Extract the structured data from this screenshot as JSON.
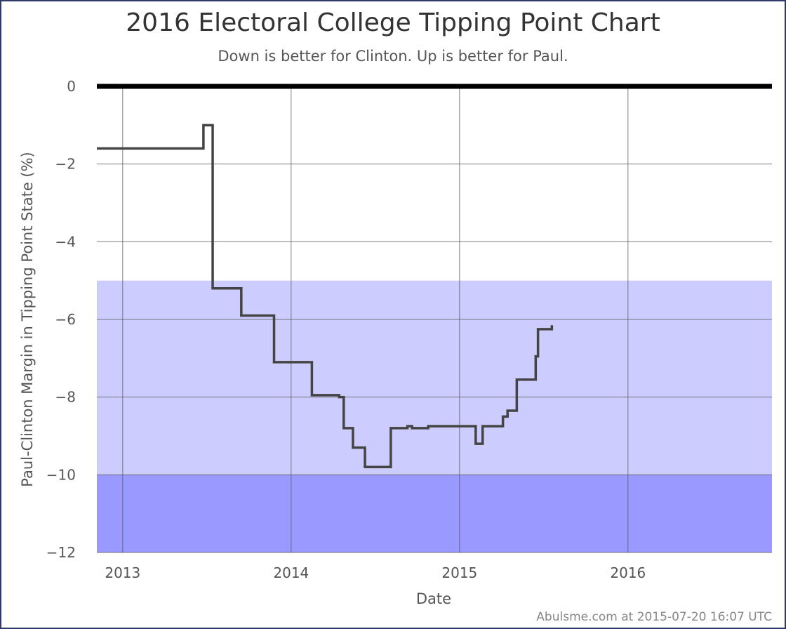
{
  "title": "2016 Electoral College Tipping Point Chart",
  "subtitle": "Down is better for Clinton. Up is better for Paul.",
  "footer": "Abulsme.com at 2015-07-20 16:07 UTC",
  "colors": {
    "line": "#444444",
    "band_light": "#ccccff",
    "band_dark": "#9999ff",
    "zero_line": "#000000",
    "grid": "#555555"
  },
  "chart_data": {
    "type": "line",
    "title": "2016 Electoral College Tipping Point Chart",
    "subtitle": "Down is better for Clinton. Up is better for Paul.",
    "xlabel": "Date",
    "ylabel": "Paul-Clinton Margin in Tipping Point State (%)",
    "xlim": [
      "2012-11-06",
      "2016-11-08"
    ],
    "ylim": [
      -12,
      0
    ],
    "x_ticks": [
      "2013",
      "2014",
      "2015",
      "2016"
    ],
    "y_ticks": [
      "0",
      "−2",
      "−4",
      "−6",
      "−8",
      "−10",
      "−12"
    ],
    "grid": true,
    "step": true,
    "bands": [
      {
        "from": -10,
        "to": -5,
        "color": "#ccccff"
      },
      {
        "from": -12,
        "to": -10,
        "color": "#9999ff"
      }
    ],
    "series": [
      {
        "points": [
          [
            "2012-11-06",
            -1.6
          ],
          [
            "2013-06-25",
            -1.0
          ],
          [
            "2013-07-15",
            -5.2
          ],
          [
            "2013-09-15",
            -5.9
          ],
          [
            "2013-11-25",
            -7.1
          ],
          [
            "2014-02-15",
            -7.95
          ],
          [
            "2014-04-15",
            -8.0
          ],
          [
            "2014-04-25",
            -8.8
          ],
          [
            "2014-05-15",
            -9.3
          ],
          [
            "2014-06-10",
            -9.8
          ],
          [
            "2014-08-05",
            -8.8
          ],
          [
            "2014-09-10",
            -8.75
          ],
          [
            "2014-09-20",
            -8.8
          ],
          [
            "2014-10-25",
            -8.75
          ],
          [
            "2015-02-05",
            -9.2
          ],
          [
            "2015-02-20",
            -8.75
          ],
          [
            "2015-04-05",
            -8.5
          ],
          [
            "2015-04-15",
            -8.35
          ],
          [
            "2015-05-05",
            -7.55
          ],
          [
            "2015-06-15",
            -6.95
          ],
          [
            "2015-06-20",
            -6.25
          ],
          [
            "2015-07-20",
            -6.15
          ]
        ]
      }
    ]
  }
}
